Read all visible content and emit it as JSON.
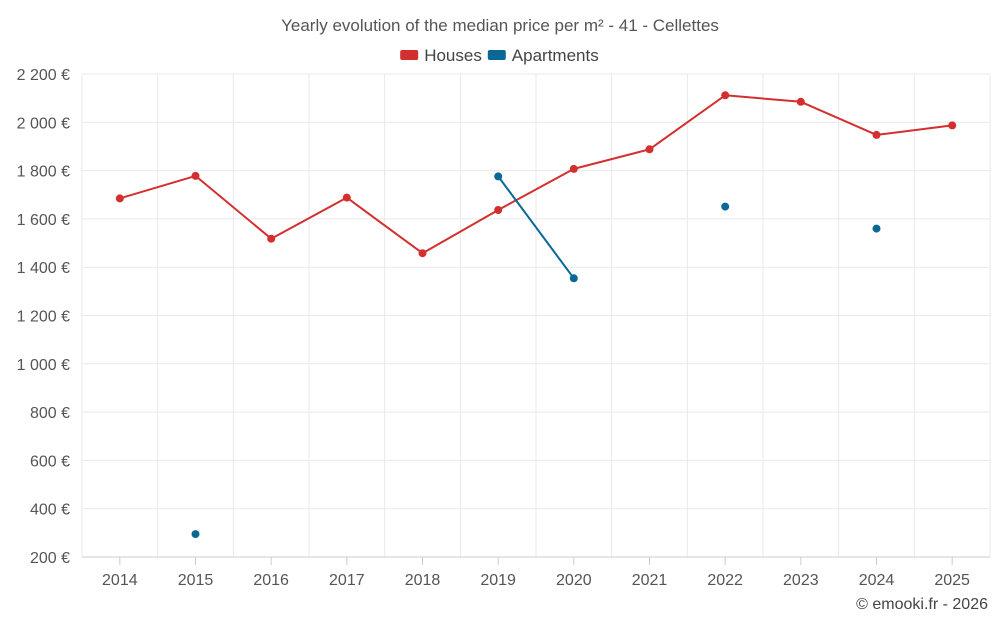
{
  "chart_data": {
    "type": "line",
    "title": "Yearly evolution of the median price per m² - 41 - Cellettes",
    "categories": [
      "2014",
      "2015",
      "2016",
      "2017",
      "2018",
      "2019",
      "2020",
      "2021",
      "2022",
      "2023",
      "2024",
      "2025"
    ],
    "ylim": [
      200,
      2200
    ],
    "yticks": [
      200,
      400,
      600,
      800,
      1000,
      1200,
      1400,
      1600,
      1800,
      2000,
      2200
    ],
    "ytick_labels": [
      "200 €",
      "400 €",
      "600 €",
      "800 €",
      "1 000 €",
      "1 200 €",
      "1 400 €",
      "1 600 €",
      "1 800 €",
      "2 000 €",
      "2 200 €"
    ],
    "grid": true,
    "legend_position": "top-center",
    "series": [
      {
        "name": "Houses",
        "color": "#d32f2f",
        "values": [
          1685,
          1778,
          1518,
          1688,
          1458,
          1637,
          1807,
          1888,
          2112,
          2085,
          1948,
          1987
        ]
      },
      {
        "name": "Apartments",
        "color": "#0a6896",
        "values": [
          null,
          295,
          null,
          null,
          null,
          1776,
          1354,
          null,
          1651,
          null,
          1560,
          null
        ]
      }
    ]
  },
  "credit": "© emooki.fr - 2026"
}
